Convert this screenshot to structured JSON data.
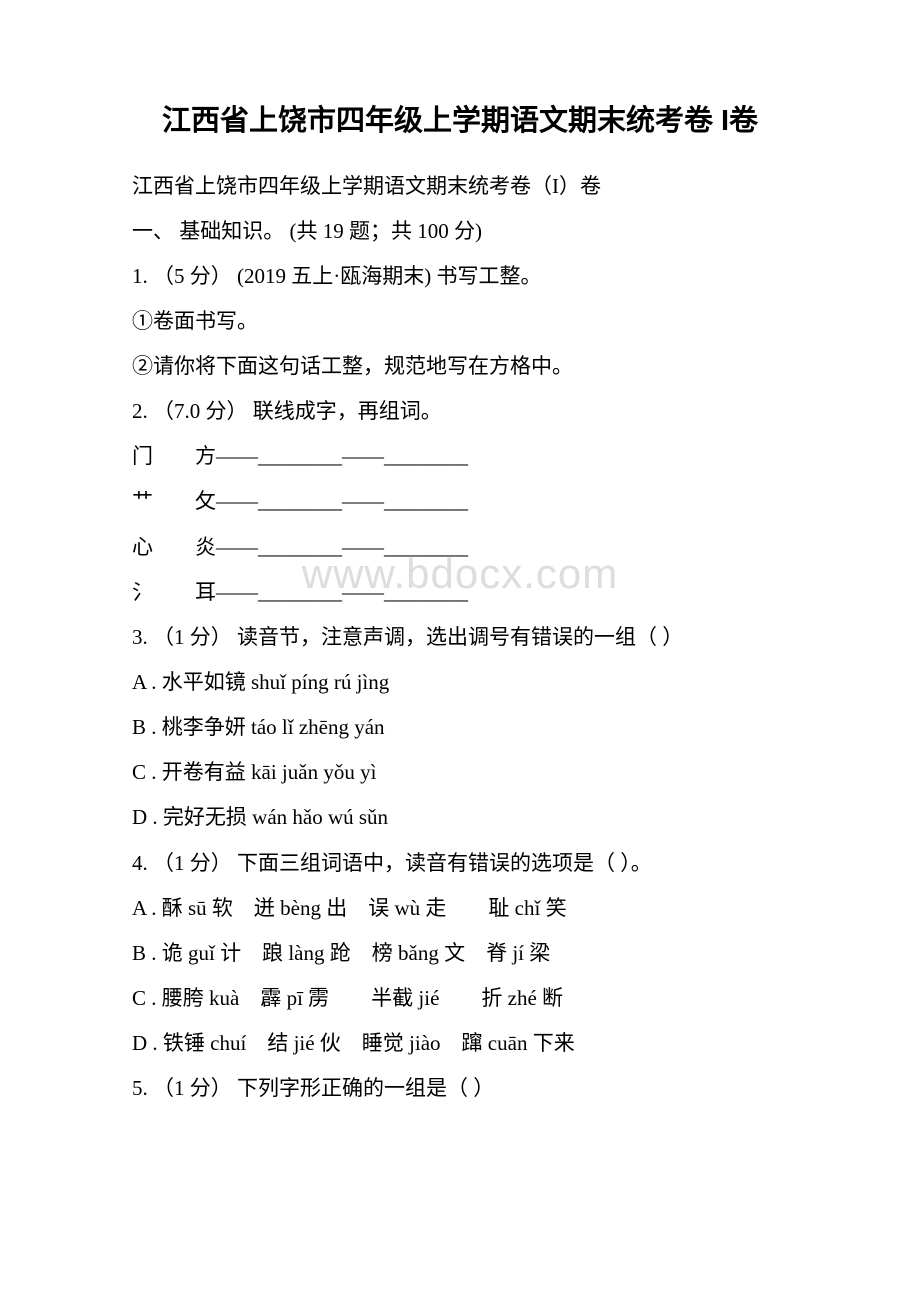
{
  "title": "江西省上饶市四年级上学期语文期末统考卷 I卷",
  "watermark": "www.bdocx.com",
  "lines": [
    "江西省上饶市四年级上学期语文期末统考卷（I）卷",
    "一、 基础知识。 (共 19 题；共 100 分)",
    "1. （5 分） (2019 五上·瓯海期末) 书写工整。",
    "①卷面书写。",
    "②请你将下面这句话工整，规范地写在方格中。",
    "2. （7.0 分） 联线成字，再组词。",
    "门　　方——________——________",
    "艹　　攵——________——________",
    "心　　炎——________——________",
    "氵　　耳——________——________",
    "3. （1 分） 读音节，注意声调，选出调号有错误的一组（ ）",
    "A . 水平如镜 shuǐ píng rú jìng",
    "B . 桃李争妍 táo lǐ zhēng yán",
    "C . 开卷有益 kāi juǎn yǒu yì",
    "D . 完好无损 wán hǎo wú sǔn",
    "4. （1 分） 下面三组词语中，读音有错误的选项是（ ）。",
    "A . 酥 sū 软　迸 bèng 出　误 wù 走　　耻 chǐ 笑",
    "B . 诡 guǐ 计　踉 làng 跄　榜 bǎng 文　脊 jí 梁",
    "C . 腰胯 kuà　霹 pī 雳　　半截 jié　　折 zhé 断",
    "D . 铁锤 chuí　结 jié 伙　睡觉 jiào　蹿 cuān 下来",
    "5. （1 分） 下列字形正确的一组是（ ）"
  ]
}
